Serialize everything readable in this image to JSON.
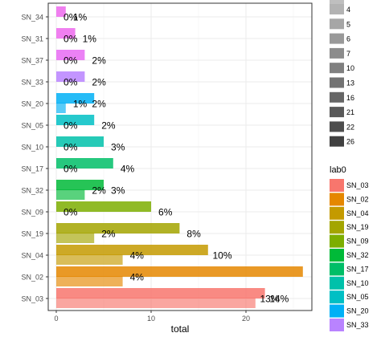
{
  "chart_data": {
    "type": "bar",
    "orientation": "horizontal",
    "xlabel": "total",
    "ylabel": "",
    "xlim": [
      -1.2,
      26.5
    ],
    "x_ticks": [
      0,
      10,
      20
    ],
    "grid": true,
    "categories": [
      "SN_34",
      "SN_31",
      "SN_37",
      "SN_33",
      "SN_20",
      "SN_05",
      "SN_10",
      "SN_17",
      "SN_32",
      "SN_09",
      "SN_19",
      "SN_04",
      "SN_02",
      "SN_03"
    ],
    "bars": [
      {
        "category": "SN_34",
        "slot": 0,
        "value": 1,
        "color": "#ED68ED"
      },
      {
        "category": "SN_31",
        "slot": 0,
        "value": 2,
        "color": "#ED68ED"
      },
      {
        "category": "SN_37",
        "slot": 0,
        "value": 3,
        "color": "#E76BF3"
      },
      {
        "category": "SN_33",
        "slot": 0,
        "value": 3,
        "color": "#B983FF"
      },
      {
        "category": "SN_20",
        "slot": 0,
        "value": 4,
        "color": "#00B0F6"
      },
      {
        "category": "SN_20",
        "slot": 1,
        "value": 1,
        "color": "#00B0F6"
      },
      {
        "category": "SN_05",
        "slot": 0,
        "value": 4,
        "color": "#00BFC4"
      },
      {
        "category": "SN_10",
        "slot": 0,
        "value": 5,
        "color": "#00C1AA"
      },
      {
        "category": "SN_17",
        "slot": 0,
        "value": 6,
        "color": "#00BE67"
      },
      {
        "category": "SN_32",
        "slot": 0,
        "value": 5,
        "color": "#00BA38"
      },
      {
        "category": "SN_32",
        "slot": 1,
        "value": 3,
        "color": "#00BA38"
      },
      {
        "category": "SN_09",
        "slot": 0,
        "value": 10,
        "color": "#7CAE00"
      },
      {
        "category": "SN_19",
        "slot": 0,
        "value": 13,
        "color": "#A3A500"
      },
      {
        "category": "SN_19",
        "slot": 1,
        "value": 4,
        "color": "#A3A500"
      },
      {
        "category": "SN_04",
        "slot": 0,
        "value": 16,
        "color": "#C49A00"
      },
      {
        "category": "SN_04",
        "slot": 1,
        "value": 7,
        "color": "#C49A00"
      },
      {
        "category": "SN_02",
        "slot": 0,
        "value": 26,
        "color": "#E58700"
      },
      {
        "category": "SN_02",
        "slot": 1,
        "value": 7,
        "color": "#E58700"
      },
      {
        "category": "SN_03",
        "slot": 0,
        "value": 22,
        "color": "#F8766D"
      },
      {
        "category": "SN_03",
        "slot": 1,
        "value": 21,
        "color": "#F8766D"
      }
    ],
    "data_labels": [
      {
        "category": "SN_34",
        "text": "0%",
        "x": 1.5
      },
      {
        "category": "SN_34",
        "text": "1%",
        "x": 2.5
      },
      {
        "category": "SN_31",
        "text": "0%",
        "x": 1.5
      },
      {
        "category": "SN_31",
        "text": "1%",
        "x": 3.5
      },
      {
        "category": "SN_37",
        "text": "0%",
        "x": 1.5
      },
      {
        "category": "SN_37",
        "text": "2%",
        "x": 4.5
      },
      {
        "category": "SN_33",
        "text": "0%",
        "x": 1.5
      },
      {
        "category": "SN_33",
        "text": "2%",
        "x": 4.5
      },
      {
        "category": "SN_20",
        "text": "1%",
        "x": 2.5
      },
      {
        "category": "SN_20",
        "text": "2%",
        "x": 4.5
      },
      {
        "category": "SN_05",
        "text": "0%",
        "x": 1.5
      },
      {
        "category": "SN_05",
        "text": "2%",
        "x": 5.5
      },
      {
        "category": "SN_10",
        "text": "0%",
        "x": 1.5
      },
      {
        "category": "SN_10",
        "text": "3%",
        "x": 6.5
      },
      {
        "category": "SN_17",
        "text": "0%",
        "x": 1.5
      },
      {
        "category": "SN_17",
        "text": "4%",
        "x": 7.5
      },
      {
        "category": "SN_32",
        "text": "2%",
        "x": 4.5
      },
      {
        "category": "SN_32",
        "text": "3%",
        "x": 6.5
      },
      {
        "category": "SN_09",
        "text": "0%",
        "x": 1.5
      },
      {
        "category": "SN_09",
        "text": "6%",
        "x": 11.5
      },
      {
        "category": "SN_19",
        "text": "2%",
        "x": 5.5
      },
      {
        "category": "SN_19",
        "text": "8%",
        "x": 14.5
      },
      {
        "category": "SN_04",
        "text": "4%",
        "x": 8.5
      },
      {
        "category": "SN_04",
        "text": "10%",
        "x": 17.5
      },
      {
        "category": "SN_02",
        "text": "4%",
        "x": 8.5
      },
      {
        "category": "SN_03",
        "text": "13%",
        "x": 22.5
      },
      {
        "category": "SN_03",
        "text": "14%",
        "x": 23.5
      }
    ],
    "legend_size": {
      "title": "",
      "placement": "right",
      "labels": [
        "4",
        "5",
        "6",
        "7",
        "10",
        "13",
        "16",
        "21",
        "22",
        "26"
      ]
    },
    "legend_fill": {
      "title": "lab0",
      "placement": "right",
      "items": [
        {
          "label": "SN_03",
          "color": "#F8766D"
        },
        {
          "label": "SN_02",
          "color": "#E58700"
        },
        {
          "label": "SN_04",
          "color": "#C49A00"
        },
        {
          "label": "SN_19",
          "color": "#A3A500"
        },
        {
          "label": "SN_09",
          "color": "#7CAE00"
        },
        {
          "label": "SN_32",
          "color": "#00BA38"
        },
        {
          "label": "SN_17",
          "color": "#00BE67"
        },
        {
          "label": "SN_10",
          "color": "#00C1AA"
        },
        {
          "label": "SN_05",
          "color": "#00BFC4"
        },
        {
          "label": "SN_20",
          "color": "#00B0F6"
        },
        {
          "label": "SN_33",
          "color": "#B983FF"
        }
      ]
    }
  }
}
